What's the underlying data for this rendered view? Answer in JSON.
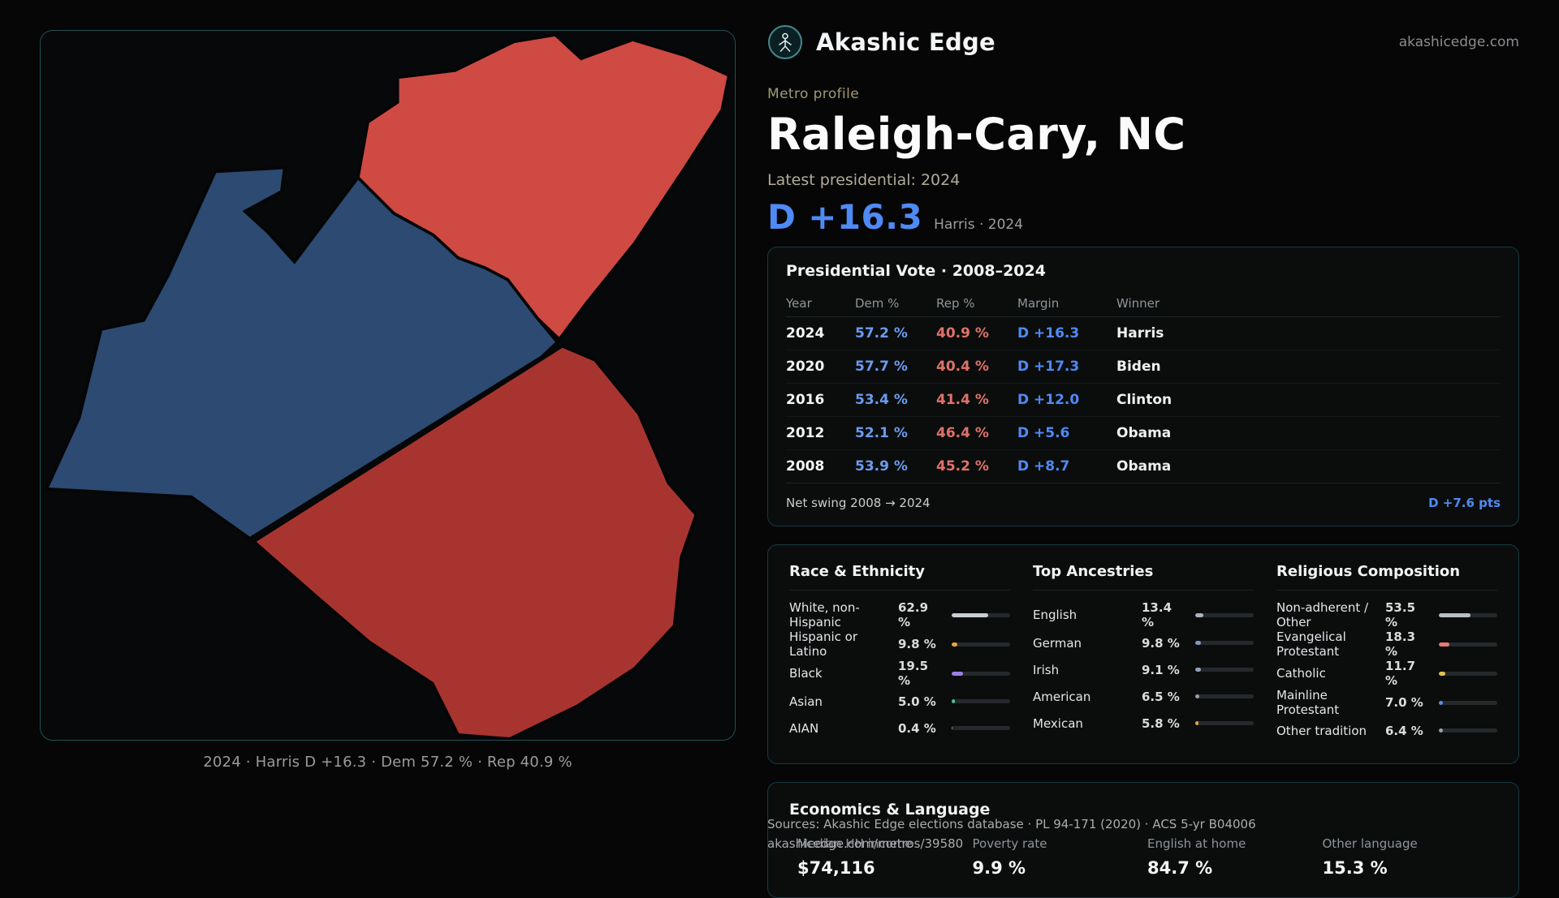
{
  "header": {
    "brand": "Akashic Edge",
    "site": "akashicedge.com"
  },
  "profile": {
    "kicker": "Metro profile",
    "title": "Raleigh-Cary, NC",
    "latest_line": "Latest presidential: 2024",
    "headline_margin": "D +16.3",
    "headline_caption": "Harris · 2024"
  },
  "colors": {
    "dem_blue": "#4f8af5",
    "dem_blue_soft": "#6b9bf0",
    "rep_red": "#e0726a",
    "kicker_gold": "#a29a72",
    "card_border_teal": "#17393f"
  },
  "map": {
    "caption": "2024 · Harris D +16.3 · Dem 57.2 % · Rep 40.9 %",
    "counties": [
      {
        "name": "north-county",
        "color": "#cf4a43"
      },
      {
        "name": "west-county",
        "color": "#2c4a72"
      },
      {
        "name": "south-county",
        "color": "#a83430"
      }
    ]
  },
  "vote_table": {
    "title": "Presidential Vote · 2008–2024",
    "columns": [
      "Year",
      "Dem %",
      "Rep %",
      "Margin",
      "Winner"
    ],
    "rows": [
      {
        "year": "2024",
        "dem": "57.2 %",
        "rep": "40.9 %",
        "margin": "D +16.3",
        "winner": "Harris"
      },
      {
        "year": "2020",
        "dem": "57.7 %",
        "rep": "40.4 %",
        "margin": "D +17.3",
        "winner": "Biden"
      },
      {
        "year": "2016",
        "dem": "53.4 %",
        "rep": "41.4 %",
        "margin": "D +12.0",
        "winner": "Clinton"
      },
      {
        "year": "2012",
        "dem": "52.1 %",
        "rep": "46.4 %",
        "margin": "D +5.6",
        "winner": "Obama"
      },
      {
        "year": "2008",
        "dem": "53.9 %",
        "rep": "45.2 %",
        "margin": "D +8.7",
        "winner": "Obama"
      }
    ],
    "net_swing_label": "Net swing 2008 → 2024",
    "net_swing_value": "D +7.6 pts"
  },
  "race": {
    "title": "Race & Ethnicity",
    "rows": [
      {
        "label": "White, non-Hispanic",
        "value": "62.9 %",
        "pct": 62.9,
        "color": "#c9ced4"
      },
      {
        "label": "Hispanic or Latino",
        "value": "9.8 %",
        "pct": 9.8,
        "color": "#e8a33d"
      },
      {
        "label": "Black",
        "value": "19.5 %",
        "pct": 19.5,
        "color": "#9b7fe8"
      },
      {
        "label": "Asian",
        "value": "5.0 %",
        "pct": 5.0,
        "color": "#4fc08d"
      },
      {
        "label": "AIAN",
        "value": "0.4 %",
        "pct": 0.4,
        "color": "#8a9199"
      }
    ]
  },
  "ancestries": {
    "title": "Top Ancestries",
    "rows": [
      {
        "label": "English",
        "value": "13.4 %",
        "pct": 13.4,
        "color": "#aab4c0"
      },
      {
        "label": "German",
        "value": "9.8 %",
        "pct": 9.8,
        "color": "#7f97c9"
      },
      {
        "label": "Irish",
        "value": "9.1 %",
        "pct": 9.1,
        "color": "#8fa0b8"
      },
      {
        "label": "American",
        "value": "6.5 %",
        "pct": 6.5,
        "color": "#98a1ab"
      },
      {
        "label": "Mexican",
        "value": "5.8 %",
        "pct": 5.8,
        "color": "#e8a33d"
      }
    ]
  },
  "religion": {
    "title": "Religious Composition",
    "rows": [
      {
        "label": "Non-adherent / Other",
        "value": "53.5 %",
        "pct": 53.5,
        "color": "#b9bfc6"
      },
      {
        "label": "Evangelical Protestant",
        "value": "18.3 %",
        "pct": 18.3,
        "color": "#e57a72"
      },
      {
        "label": "Catholic",
        "value": "11.7 %",
        "pct": 11.7,
        "color": "#e3c14f"
      },
      {
        "label": "Mainline Protestant",
        "value": "7.0 %",
        "pct": 7.0,
        "color": "#5b8def"
      },
      {
        "label": "Other tradition",
        "value": "6.4 %",
        "pct": 6.4,
        "color": "#9aa1a8"
      }
    ]
  },
  "economics": {
    "title": "Economics & Language",
    "stats": [
      {
        "label": "Median HH income",
        "value": "$74,116"
      },
      {
        "label": "Poverty rate",
        "value": "9.9 %"
      },
      {
        "label": "English at home",
        "value": "84.7 %"
      },
      {
        "label": "Other language",
        "value": "15.3 %"
      }
    ]
  },
  "footer": {
    "sources": "Sources: Akashic Edge elections database · PL 94-171 (2020) · ACS 5-yr B04006",
    "permalink": "akashicedge.com/metros/39580"
  },
  "chart_data": [
    {
      "type": "table",
      "title": "Presidential Vote · 2008–2024",
      "columns": [
        "Year",
        "Dem %",
        "Rep %",
        "Margin",
        "Winner"
      ],
      "rows": [
        [
          2024,
          57.2,
          40.9,
          "D +16.3",
          "Harris"
        ],
        [
          2020,
          57.7,
          40.4,
          "D +17.3",
          "Biden"
        ],
        [
          2016,
          53.4,
          41.4,
          "D +12.0",
          "Clinton"
        ],
        [
          2012,
          52.1,
          46.4,
          "D +5.6",
          "Obama"
        ],
        [
          2008,
          53.9,
          45.2,
          "D +8.7",
          "Obama"
        ]
      ],
      "footnote": "Net swing 2008 → 2024: D +7.6 pts"
    },
    {
      "type": "bar",
      "orientation": "horizontal",
      "title": "Race & Ethnicity",
      "categories": [
        "White, non-Hispanic",
        "Hispanic or Latino",
        "Black",
        "Asian",
        "AIAN"
      ],
      "values": [
        62.9,
        9.8,
        19.5,
        5.0,
        0.4
      ],
      "unit": "%",
      "xlim": [
        0,
        100
      ]
    },
    {
      "type": "bar",
      "orientation": "horizontal",
      "title": "Top Ancestries",
      "categories": [
        "English",
        "German",
        "Irish",
        "American",
        "Mexican"
      ],
      "values": [
        13.4,
        9.8,
        9.1,
        6.5,
        5.8
      ],
      "unit": "%",
      "xlim": [
        0,
        100
      ]
    },
    {
      "type": "bar",
      "orientation": "horizontal",
      "title": "Religious Composition",
      "categories": [
        "Non-adherent / Other",
        "Evangelical Protestant",
        "Catholic",
        "Mainline Protestant",
        "Other tradition"
      ],
      "values": [
        53.5,
        18.3,
        11.7,
        7.0,
        6.4
      ],
      "unit": "%",
      "xlim": [
        0,
        100
      ]
    },
    {
      "type": "table",
      "title": "Economics & Language",
      "columns": [
        "Metric",
        "Value"
      ],
      "rows": [
        [
          "Median HH income",
          "$74,116"
        ],
        [
          "Poverty rate",
          "9.9 %"
        ],
        [
          "English at home",
          "84.7 %"
        ],
        [
          "Other language",
          "15.3 %"
        ]
      ]
    }
  ]
}
